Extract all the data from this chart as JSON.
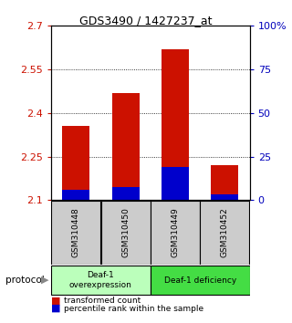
{
  "title": "GDS3490 / 1427237_at",
  "categories": [
    "GSM310448",
    "GSM310450",
    "GSM310449",
    "GSM310452"
  ],
  "red_values": [
    2.355,
    2.47,
    2.62,
    2.22
  ],
  "blue_values": [
    2.135,
    2.145,
    2.215,
    2.12
  ],
  "y_min": 2.1,
  "y_max": 2.7,
  "y_ticks_left": [
    2.1,
    2.25,
    2.4,
    2.55,
    2.7
  ],
  "y_ticks_right": [
    0,
    25,
    50,
    75,
    100
  ],
  "y_right_labels": [
    "0",
    "25",
    "50",
    "75",
    "100%"
  ],
  "grid_lines": [
    2.25,
    2.4,
    2.55
  ],
  "bar_width": 0.55,
  "red_color": "#cc1100",
  "blue_color": "#0000cc",
  "groups": [
    {
      "label": "Deaf-1\noverexpression",
      "indices": [
        0,
        1
      ],
      "color": "#bbffbb"
    },
    {
      "label": "Deaf-1 deficiency",
      "indices": [
        2,
        3
      ],
      "color": "#44dd44"
    }
  ],
  "protocol_label": "protocol",
  "legend_red": "transformed count",
  "legend_blue": "percentile rank within the sample",
  "left_tick_color": "#cc1100",
  "right_tick_color": "#0000bb",
  "gray_box_color": "#cccccc"
}
